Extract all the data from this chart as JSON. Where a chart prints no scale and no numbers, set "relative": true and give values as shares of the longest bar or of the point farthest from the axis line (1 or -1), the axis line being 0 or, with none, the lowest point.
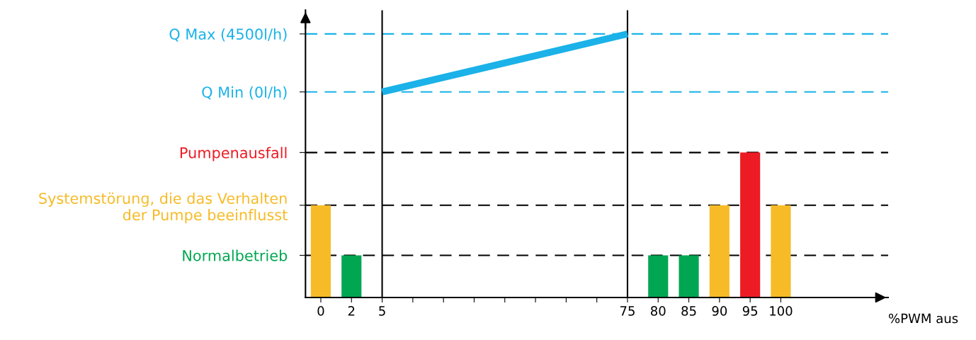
{
  "chart_data": {
    "type": "bar",
    "relative": true,
    "annotations": [
      "%PWM aus"
    ],
    "categories": [
      "0",
      "2",
      "5",
      null,
      null,
      null,
      null,
      null,
      null,
      null,
      "75",
      "80",
      "85",
      "90",
      "95",
      "100"
    ],
    "series": [
      {
        "colors": [
          "#f6bb27",
          "#00a651",
          null,
          null,
          null,
          null,
          null,
          null,
          null,
          null,
          null,
          "#00a651",
          "#00a651",
          "#f6bb27",
          "#ed1c24",
          "#f6bb27"
        ],
        "values": [
          0.35,
          0.16,
          null,
          null,
          null,
          null,
          null,
          null,
          null,
          null,
          null,
          0.16,
          0.16,
          0.35,
          0.55,
          0.35
        ]
      },
      {
        "type": "line",
        "color": "#1ab2e8",
        "x": [
          "5",
          "75"
        ],
        "values": [
          0.78,
          1
        ]
      }
    ],
    "ref_lines": [
      {
        "axis": "y",
        "value": 0.16,
        "label": "Normalbetrieb",
        "color": "#000000",
        "line_style": "dashed"
      },
      {
        "axis": "y",
        "value": 0.35,
        "label": "Systemstörung, die das Verhalten\nder Pumpe beeinflusst",
        "color": "#000000",
        "line_style": "dashed"
      },
      {
        "axis": "y",
        "value": 0.55,
        "label": "Pumpenausfall",
        "color": "#000000",
        "line_style": "dashed"
      },
      {
        "axis": "y",
        "value": 0.78,
        "label": "Q Min (0l/h)",
        "color": "#1ab2e8",
        "line_style": "dashed"
      },
      {
        "axis": "y",
        "value": 1,
        "label": "Q Max (4500l/h)",
        "color": "#1ab2e8",
        "line_style": "dashed"
      },
      {
        "axis": "x",
        "value": "5",
        "color": "#000000",
        "line_style": "solid"
      },
      {
        "axis": "x",
        "value": "75",
        "color": "#000000",
        "line_style": "solid"
      }
    ],
    "grid": false,
    "legend": false
  }
}
